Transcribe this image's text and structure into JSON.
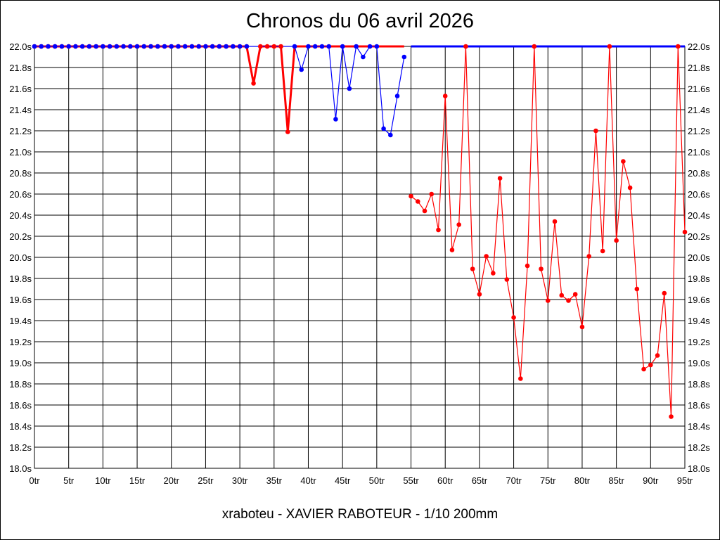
{
  "chart_data": {
    "type": "line",
    "title": "Chronos du 06 avril 2026",
    "subtitle": "xraboteu - XAVIER RABOTEUR - 1/10 200mm",
    "xlabel": "",
    "ylabel": "",
    "xlim": [
      0,
      95
    ],
    "ylim": [
      18.0,
      22.0
    ],
    "x_ticks": [
      0,
      5,
      10,
      15,
      20,
      25,
      30,
      35,
      40,
      45,
      50,
      55,
      60,
      65,
      70,
      75,
      80,
      85,
      90,
      95
    ],
    "x_tick_labels": [
      "0tr",
      "5tr",
      "10tr",
      "15tr",
      "20tr",
      "25tr",
      "30tr",
      "35tr",
      "40tr",
      "45tr",
      "50tr",
      "55tr",
      "60tr",
      "65tr",
      "70tr",
      "75tr",
      "80tr",
      "85tr",
      "90tr",
      "95tr"
    ],
    "y_ticks": [
      18.0,
      18.2,
      18.4,
      18.6,
      18.8,
      19.0,
      19.2,
      19.4,
      19.6,
      19.8,
      20.0,
      20.2,
      20.4,
      20.6,
      20.8,
      21.0,
      21.2,
      21.4,
      21.6,
      21.8,
      22.0
    ],
    "y_tick_labels": [
      "18.0s",
      "18.2s",
      "18.4s",
      "18.6s",
      "18.8s",
      "19.0s",
      "19.2s",
      "19.4s",
      "19.6s",
      "19.8s",
      "20.0s",
      "20.2s",
      "20.4s",
      "20.6s",
      "20.8s",
      "21.0s",
      "21.2s",
      "21.4s",
      "21.6s",
      "21.8s",
      "22.0s"
    ],
    "grid": true,
    "series": [
      {
        "color": "#ff0000",
        "points": [
          [
            0,
            22.0
          ],
          [
            1,
            22.0
          ],
          [
            2,
            22.0
          ],
          [
            3,
            22.0
          ],
          [
            4,
            22.0
          ],
          [
            5,
            22.0
          ],
          [
            6,
            22.0
          ],
          [
            7,
            22.0
          ],
          [
            8,
            22.0
          ],
          [
            9,
            22.0
          ],
          [
            10,
            22.0
          ],
          [
            11,
            22.0
          ],
          [
            12,
            22.0
          ],
          [
            13,
            22.0
          ],
          [
            14,
            22.0
          ],
          [
            15,
            22.0
          ],
          [
            16,
            22.0
          ],
          [
            17,
            22.0
          ],
          [
            18,
            22.0
          ],
          [
            19,
            22.0
          ],
          [
            20,
            22.0
          ],
          [
            21,
            22.0
          ],
          [
            22,
            22.0
          ],
          [
            23,
            22.0
          ],
          [
            24,
            22.0
          ],
          [
            25,
            22.0
          ],
          [
            26,
            22.0
          ],
          [
            27,
            22.0
          ],
          [
            28,
            22.0
          ],
          [
            29,
            22.0
          ],
          [
            30,
            22.0
          ],
          [
            31,
            22.0
          ],
          [
            32,
            21.65
          ],
          [
            33,
            22.0
          ],
          [
            34,
            22.0
          ],
          [
            35,
            22.0
          ],
          [
            36,
            22.0
          ],
          [
            37,
            21.19
          ],
          [
            38,
            22.0
          ],
          [
            39,
            22.0
          ],
          [
            40,
            22.0
          ],
          [
            41,
            22.0
          ],
          [
            42,
            22.0
          ],
          [
            43,
            22.0
          ],
          [
            44,
            22.0
          ],
          [
            45,
            22.0
          ],
          [
            46,
            22.0
          ],
          [
            47,
            22.0
          ],
          [
            48,
            22.0
          ],
          [
            49,
            22.0
          ],
          [
            50,
            22.0
          ],
          [
            51,
            22.0
          ],
          [
            52,
            22.0
          ],
          [
            53,
            22.0
          ],
          [
            54,
            22.0
          ]
        ],
        "markers": [
          0,
          1,
          2,
          3,
          4,
          5,
          6,
          7,
          8,
          9,
          10,
          11,
          12,
          13,
          14,
          15,
          16,
          17,
          18,
          19,
          20,
          21,
          22,
          23,
          24,
          25,
          26,
          27,
          28,
          29,
          30,
          31,
          32,
          33,
          34,
          35,
          36,
          37
        ]
      },
      {
        "color": "#0000ff",
        "points": [
          [
            0,
            22.0
          ],
          [
            1,
            22.0
          ],
          [
            2,
            22.0
          ],
          [
            3,
            22.0
          ],
          [
            4,
            22.0
          ],
          [
            5,
            22.0
          ],
          [
            6,
            22.0
          ],
          [
            7,
            22.0
          ],
          [
            8,
            22.0
          ],
          [
            9,
            22.0
          ],
          [
            10,
            22.0
          ],
          [
            11,
            22.0
          ],
          [
            12,
            22.0
          ],
          [
            13,
            22.0
          ],
          [
            14,
            22.0
          ],
          [
            15,
            22.0
          ],
          [
            16,
            22.0
          ],
          [
            17,
            22.0
          ],
          [
            18,
            22.0
          ],
          [
            19,
            22.0
          ],
          [
            20,
            22.0
          ],
          [
            21,
            22.0
          ],
          [
            22,
            22.0
          ],
          [
            23,
            22.0
          ],
          [
            24,
            22.0
          ],
          [
            25,
            22.0
          ],
          [
            26,
            22.0
          ],
          [
            27,
            22.0
          ],
          [
            28,
            22.0
          ],
          [
            29,
            22.0
          ],
          [
            30,
            22.0
          ],
          [
            31,
            22.0
          ],
          [
            32,
            22.0
          ],
          [
            33,
            22.0
          ],
          [
            34,
            22.0
          ],
          [
            35,
            22.0
          ],
          [
            36,
            22.0
          ],
          [
            37,
            22.0
          ],
          [
            38,
            22.0
          ],
          [
            39,
            21.78
          ],
          [
            40,
            22.0
          ],
          [
            41,
            22.0
          ],
          [
            42,
            22.0
          ],
          [
            43,
            22.0
          ],
          [
            44,
            21.31
          ],
          [
            45,
            22.0
          ],
          [
            46,
            21.6
          ],
          [
            47,
            22.0
          ],
          [
            48,
            21.9
          ],
          [
            49,
            22.0
          ],
          [
            50,
            22.0
          ],
          [
            51,
            21.22
          ],
          [
            52,
            21.16
          ],
          [
            53,
            21.53
          ],
          [
            54,
            21.9
          ]
        ],
        "markers": [
          0,
          1,
          2,
          3,
          4,
          5,
          6,
          7,
          8,
          9,
          10,
          11,
          12,
          13,
          14,
          15,
          16,
          17,
          18,
          19,
          20,
          21,
          22,
          23,
          24,
          25,
          26,
          27,
          28,
          29,
          30,
          31,
          38,
          39,
          40,
          41,
          42,
          43,
          44,
          45,
          46,
          47,
          48,
          49,
          50,
          51,
          52,
          53,
          54
        ]
      },
      {
        "color": "#ff0000",
        "points": [
          [
            55,
            20.58
          ],
          [
            56,
            20.53
          ],
          [
            57,
            20.44
          ],
          [
            58,
            20.6
          ],
          [
            59,
            20.26
          ],
          [
            60,
            21.53
          ],
          [
            61,
            20.07
          ],
          [
            62,
            20.31
          ],
          [
            63,
            22.0
          ],
          [
            64,
            19.89
          ],
          [
            65,
            19.65
          ],
          [
            66,
            20.01
          ],
          [
            67,
            19.85
          ],
          [
            68,
            20.75
          ],
          [
            69,
            19.79
          ],
          [
            70,
            19.43
          ],
          [
            71,
            18.85
          ],
          [
            72,
            19.92
          ],
          [
            73,
            22.0
          ],
          [
            74,
            19.89
          ],
          [
            75,
            19.59
          ],
          [
            76,
            20.34
          ],
          [
            77,
            19.64
          ],
          [
            78,
            19.59
          ],
          [
            79,
            19.65
          ],
          [
            80,
            19.34
          ],
          [
            81,
            20.01
          ],
          [
            82,
            21.2
          ],
          [
            83,
            20.06
          ],
          [
            84,
            22.0
          ],
          [
            85,
            20.16
          ],
          [
            86,
            20.91
          ],
          [
            87,
            20.66
          ],
          [
            88,
            19.7
          ],
          [
            89,
            18.94
          ],
          [
            90,
            18.98
          ],
          [
            91,
            19.07
          ],
          [
            92,
            19.66
          ],
          [
            93,
            18.49
          ],
          [
            94,
            22.0
          ],
          [
            95,
            20.24
          ]
        ],
        "markers": [
          0,
          1,
          2,
          3,
          4,
          5,
          6,
          7,
          8,
          9,
          10,
          11,
          12,
          13,
          14,
          15,
          16,
          17,
          18,
          19,
          20,
          21,
          22,
          23,
          24,
          25,
          26,
          27,
          28,
          29,
          30,
          31,
          32,
          33,
          34,
          35,
          36,
          37,
          38,
          39,
          40
        ]
      },
      {
        "color": "#0000ff",
        "points": [
          [
            55,
            22.0
          ],
          [
            95,
            22.0
          ]
        ],
        "markers": []
      }
    ]
  }
}
